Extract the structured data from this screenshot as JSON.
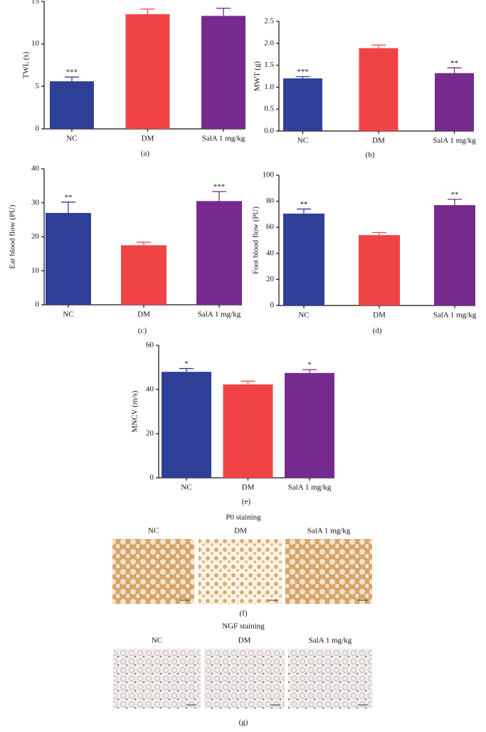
{
  "chart_data": [
    {
      "type": "bar",
      "panel": "(a)",
      "ylabel": "TWL (s)",
      "categories": [
        "NC",
        "DM",
        "SalA 1 mg/kg"
      ],
      "values": [
        5.6,
        13.5,
        13.3
      ],
      "errors": [
        0.5,
        0.6,
        0.9
      ],
      "significance": [
        "***",
        null,
        null
      ],
      "colors": [
        "#2e3f98",
        "#f04346",
        "#772a8e"
      ],
      "ylim": [
        0,
        15
      ],
      "yticks": [
        0,
        5,
        10,
        15
      ]
    },
    {
      "type": "bar",
      "panel": "(b)",
      "ylabel": "MWT (g)",
      "categories": [
        "NC",
        "DM",
        "SalA 1 mg/kg"
      ],
      "values": [
        1.2,
        1.89,
        1.32
      ],
      "errors": [
        0.04,
        0.07,
        0.12
      ],
      "significance": [
        "***",
        null,
        "**"
      ],
      "colors": [
        "#2e3f98",
        "#f04346",
        "#772a8e"
      ],
      "ylim": [
        0,
        2.5
      ],
      "yticks": [
        {
          "value": 0,
          "label": "0.0"
        },
        0.5,
        {
          "value": 1,
          "label": "1.0"
        },
        1.5,
        {
          "value": 2,
          "label": "2.0"
        },
        2.5
      ]
    },
    {
      "type": "bar",
      "panel": "(c)",
      "ylabel": "Ear blood flow (PU)",
      "categories": [
        "NC",
        "DM",
        "SalA 1 mg/kg"
      ],
      "values": [
        27,
        17.5,
        30.5
      ],
      "errors": [
        3.2,
        0.9,
        2.8
      ],
      "significance": [
        "**",
        null,
        "***"
      ],
      "colors": [
        "#2e3f98",
        "#f04346",
        "#772a8e"
      ],
      "ylim": [
        0,
        40
      ],
      "yticks": [
        0,
        10,
        20,
        30,
        40
      ]
    },
    {
      "type": "bar",
      "panel": "(d)",
      "ylabel": "Foot blood flow (PU)",
      "categories": [
        "NC",
        "DM",
        "SalA 1 mg/kg"
      ],
      "values": [
        70.5,
        54,
        77
      ],
      "errors": [
        3.5,
        2,
        4.5
      ],
      "significance": [
        "**",
        null,
        "**"
      ],
      "colors": [
        "#2e3f98",
        "#f04346",
        "#772a8e"
      ],
      "ylim": [
        0,
        100
      ],
      "yticks": [
        0,
        20,
        40,
        60,
        80,
        100
      ]
    },
    {
      "type": "bar",
      "panel": "(e)",
      "ylabel": "MNCV (m/s)",
      "categories": [
        "NC",
        "DM",
        "SalA 1 mg/kg"
      ],
      "values": [
        48,
        42.3,
        47.5
      ],
      "errors": [
        1.5,
        1.5,
        1.5
      ],
      "significance": [
        "*",
        null,
        "*"
      ],
      "colors": [
        "#2e3f98",
        "#f04346",
        "#772a8e"
      ],
      "ylim": [
        0,
        60
      ],
      "yticks": [
        0,
        20,
        40,
        60
      ]
    }
  ],
  "figures": [
    {
      "title": "P0 staining",
      "columns": [
        "NC",
        "DM",
        "SalA 1 mg/kg"
      ],
      "panel": "(f)"
    },
    {
      "title": "NGF staining",
      "columns": [
        "NC",
        "DM",
        "SalA 1 mg/kg"
      ],
      "panel": "(g)"
    }
  ]
}
